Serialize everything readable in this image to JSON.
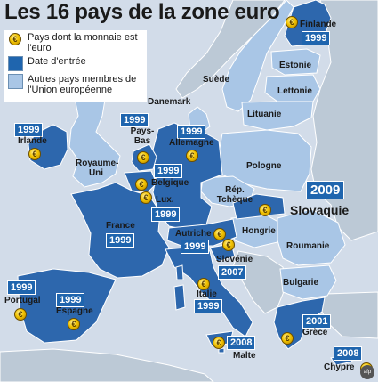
{
  "title": "Les 16 pays de la zone euro",
  "legend": {
    "euro": "Pays dont la monnaie est l'euro",
    "date": "Date d'entrée",
    "other": "Autres pays membres de l'Union européenne"
  },
  "colors": {
    "sea": "#d2dce9",
    "eurozone": "#2d67ad",
    "other_eu": "#a9c6e6",
    "non_eu": "#bcc9d6",
    "badge": "#1f65ae"
  },
  "countries": {
    "finlande": {
      "name": "Finlande",
      "year": "1999"
    },
    "irlande": {
      "name": "Irlande",
      "year": "1999"
    },
    "pays_bas": {
      "name": "Pays-Bas",
      "year": "1999"
    },
    "allemagne": {
      "name": "Allemagne",
      "year": "1999"
    },
    "belgique": {
      "name": "Belgique",
      "year": "1999"
    },
    "luxembourg": {
      "name": "Lux.",
      "year": "1999"
    },
    "france": {
      "name": "France",
      "year": "1999"
    },
    "autriche": {
      "name": "Autriche",
      "year": "1999"
    },
    "slovaquie": {
      "name": "Slovaquie",
      "year": "2009"
    },
    "slovenie": {
      "name": "Slovénie",
      "year": "2007"
    },
    "italie": {
      "name": "Italie",
      "year": "1999"
    },
    "portugal": {
      "name": "Portugal",
      "year": "1999"
    },
    "espagne": {
      "name": "Espagne",
      "year": "1999"
    },
    "grece": {
      "name": "Grèce",
      "year": "2001"
    },
    "malte": {
      "name": "Malte",
      "year": "2008"
    },
    "chypre": {
      "name": "Chypre",
      "year": "2008"
    }
  },
  "other_labels": {
    "suede": "Suède",
    "estonie": "Estonie",
    "lettonie": "Lettonie",
    "danemark": "Danemark",
    "lituanie": "Lituanie",
    "royaume_uni": "Royaume-Uni",
    "pologne": "Pologne",
    "rep_tcheque": "Rép. Tchèque",
    "hongrie": "Hongrie",
    "roumanie": "Roumanie",
    "bulgarie": "Bulgarie"
  },
  "coin_symbol": "€",
  "credit": "afp"
}
